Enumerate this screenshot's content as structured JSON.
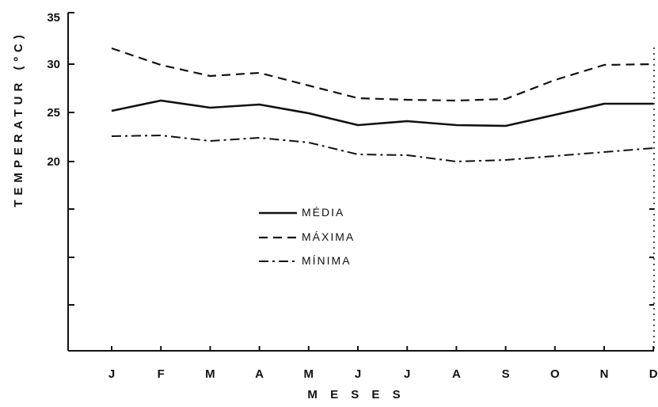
{
  "chart_data": {
    "type": "line",
    "title": "",
    "xlabel": "M E S E S",
    "ylabel": "TEMPERATUR (ºC)",
    "categories": [
      "J",
      "F",
      "M",
      "A",
      "M",
      "J",
      "J",
      "A",
      "S",
      "O",
      "N",
      "D"
    ],
    "yticks": [
      35,
      30,
      25,
      20
    ],
    "ylim": [
      0,
      35
    ],
    "grid": false,
    "legend": "center-left",
    "series": [
      {
        "name": "MÉDIA",
        "style": "solid",
        "values": [
          24.1,
          25.4,
          24.5,
          24.9,
          23.8,
          22.3,
          22.8,
          22.3,
          22.2,
          23.6,
          25.0,
          25.0
        ]
      },
      {
        "name": "MÁXIMA",
        "style": "dashed",
        "values": [
          32.0,
          29.9,
          28.5,
          28.9,
          27.3,
          25.7,
          25.5,
          25.4,
          25.6,
          28.0,
          29.9,
          30.0
        ]
      },
      {
        "name": "MÍNIMA",
        "style": "dashdot",
        "values": [
          20.9,
          21.0,
          20.3,
          20.7,
          20.1,
          18.6,
          18.5,
          17.7,
          17.9,
          18.4,
          18.9,
          19.4
        ]
      }
    ],
    "colors": {
      "line": "#111111",
      "background": "#ffffff"
    }
  }
}
